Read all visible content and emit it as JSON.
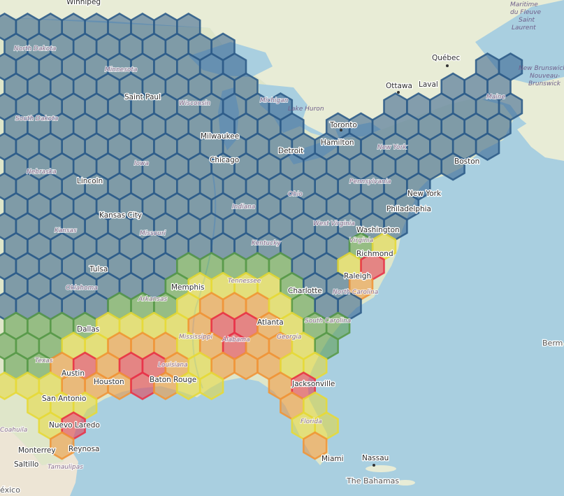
{
  "colors": {
    "ocean": "#a9cfe0",
    "land_us": "#dfe6c9",
    "land_canada": "#e8ecd6",
    "great_lakes": "#a9cfe0",
    "hex_low": "#2f5d8a",
    "hex_lowmid": "#5a9a4a",
    "hex_mid": "#e6d93a",
    "hex_high": "#f0963a",
    "hex_max": "#e8344a"
  },
  "cities": [
    {
      "id": "winnipeg",
      "label": "Winnipeg"
    },
    {
      "id": "quebec",
      "label": "Québec"
    },
    {
      "id": "ottawa",
      "label": "Ottawa"
    },
    {
      "id": "laval",
      "label": "Laval"
    },
    {
      "id": "saint-paul",
      "label": "Saint Paul"
    },
    {
      "id": "milwaukee",
      "label": "Milwaukee"
    },
    {
      "id": "toronto",
      "label": "Toronto"
    },
    {
      "id": "hamilton",
      "label": "Hamilton"
    },
    {
      "id": "detroit",
      "label": "Detroit"
    },
    {
      "id": "chicago",
      "label": "Chicago"
    },
    {
      "id": "boston",
      "label": "Boston"
    },
    {
      "id": "new-york",
      "label": "New York"
    },
    {
      "id": "lincoln",
      "label": "Lincoln"
    },
    {
      "id": "kansas-city",
      "label": "Kansas City"
    },
    {
      "id": "philadelphia",
      "label": "Philadelphia"
    },
    {
      "id": "washington",
      "label": "Washington"
    },
    {
      "id": "richmond",
      "label": "Richmond"
    },
    {
      "id": "tulsa",
      "label": "Tulsa"
    },
    {
      "id": "memphis",
      "label": "Memphis"
    },
    {
      "id": "raleigh",
      "label": "Raleigh"
    },
    {
      "id": "charlotte",
      "label": "Charlotte"
    },
    {
      "id": "dallas",
      "label": "Dallas"
    },
    {
      "id": "atlanta",
      "label": "Atlanta"
    },
    {
      "id": "austin",
      "label": "Austin"
    },
    {
      "id": "houston",
      "label": "Houston"
    },
    {
      "id": "baton-rouge",
      "label": "Baton Rouge"
    },
    {
      "id": "jacksonville",
      "label": "Jacksonville"
    },
    {
      "id": "san-antonio",
      "label": "San Antonio"
    },
    {
      "id": "nuevo-laredo",
      "label": "Nuevo Laredo"
    },
    {
      "id": "monterrey",
      "label": "Monterrey"
    },
    {
      "id": "reynosa",
      "label": "Reynosa"
    },
    {
      "id": "saltillo",
      "label": "Saltillo"
    },
    {
      "id": "miami",
      "label": "Miami"
    },
    {
      "id": "nassau",
      "label": "Nassau"
    }
  ],
  "regions": [
    {
      "id": "north-dakota",
      "label": "North Dakota"
    },
    {
      "id": "minnesota",
      "label": "Minnesota"
    },
    {
      "id": "south-dakota",
      "label": "South Dakota"
    },
    {
      "id": "wisconsin",
      "label": "Wisconsin"
    },
    {
      "id": "michigan",
      "label": "Michigan"
    },
    {
      "id": "lake-huron",
      "label": "Lake Huron"
    },
    {
      "id": "nebraska",
      "label": "Nebraska"
    },
    {
      "id": "iowa",
      "label": "Iowa"
    },
    {
      "id": "new-york-state",
      "label": "New York"
    },
    {
      "id": "maine",
      "label": "Maine"
    },
    {
      "id": "pennsylvania",
      "label": "Pennsylvania"
    },
    {
      "id": "ohio",
      "label": "Ohio"
    },
    {
      "id": "indiana",
      "label": "Indiana"
    },
    {
      "id": "kansas",
      "label": "Kansas"
    },
    {
      "id": "missouri",
      "label": "Missouri"
    },
    {
      "id": "west-virginia",
      "label": "West Virginia"
    },
    {
      "id": "kentucky",
      "label": "Kentucky"
    },
    {
      "id": "virginia",
      "label": "Virginia"
    },
    {
      "id": "oklahoma",
      "label": "Oklahoma"
    },
    {
      "id": "arkansas",
      "label": "Arkansas"
    },
    {
      "id": "tennessee",
      "label": "Tennessee"
    },
    {
      "id": "north-carolina",
      "label": "North Carolina"
    },
    {
      "id": "south-carolina",
      "label": "South Carolina"
    },
    {
      "id": "mississippi",
      "label": "Mississippi"
    },
    {
      "id": "alabama",
      "label": "Alabama"
    },
    {
      "id": "georgia",
      "label": "Georgia"
    },
    {
      "id": "louisiana",
      "label": "Louisiana"
    },
    {
      "id": "texas",
      "label": "Texas"
    },
    {
      "id": "florida",
      "label": "Florida"
    },
    {
      "id": "coahuila",
      "label": "Coahuila"
    },
    {
      "id": "tamaulipas",
      "label": "Tamaulipas"
    }
  ],
  "water_labels": [
    {
      "id": "maritime",
      "lines": [
        "Maritime",
        "du Fleuve",
        "Saint",
        "Laurent"
      ]
    },
    {
      "id": "new-brunswick",
      "lines": [
        "New Brunswick",
        "Nouveau-",
        "Brunswick"
      ]
    }
  ],
  "edge_labels": [
    {
      "id": "the-bahamas",
      "label": "The Bahamas"
    },
    {
      "id": "bermuda",
      "label": "Berm"
    },
    {
      "id": "mexico",
      "label": "éxico"
    }
  ]
}
